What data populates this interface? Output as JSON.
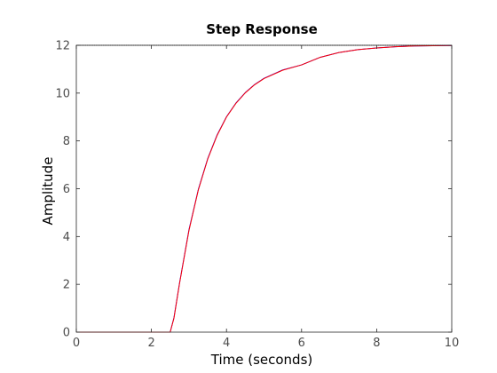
{
  "chart_data": {
    "type": "line",
    "title": "Step Response",
    "xlabel": "Time (seconds)",
    "ylabel": "Amplitude",
    "xlim": [
      0,
      10
    ],
    "ylim": [
      0,
      12
    ],
    "xticks": [
      0,
      2,
      4,
      6,
      8,
      10
    ],
    "yticks": [
      0,
      2,
      4,
      6,
      8,
      10,
      12
    ],
    "xtick_labels": [
      "0",
      "2",
      "4",
      "6",
      "8",
      "10"
    ],
    "ytick_labels": [
      "0",
      "2",
      "4",
      "6",
      "8",
      "10",
      "12"
    ],
    "grid": false,
    "box": true,
    "reference_line": {
      "y": 12,
      "style": "dotted",
      "color": "#000000"
    },
    "series": [
      {
        "color": "#0000ff",
        "x": [
          0,
          1,
          2,
          2.5,
          2.6,
          2.75,
          3.0,
          3.25,
          3.5,
          3.75,
          4.0,
          4.25,
          4.5,
          4.75,
          5.0,
          5.5,
          6.0,
          6.5,
          7.0,
          7.5,
          8.0,
          8.5,
          9.0,
          9.5,
          10.0
        ],
        "y": [
          0,
          0,
          0,
          0,
          0.6,
          2.06,
          4.28,
          5.97,
          7.26,
          8.25,
          9.01,
          9.58,
          10.02,
          10.36,
          10.62,
          10.97,
          11.18,
          11.5,
          11.7,
          11.82,
          11.89,
          11.94,
          11.97,
          11.98,
          11.99
        ]
      },
      {
        "color": "#ff0000",
        "x": [
          0,
          1,
          2,
          2.5,
          2.6,
          2.75,
          3.0,
          3.25,
          3.5,
          3.75,
          4.0,
          4.25,
          4.5,
          4.75,
          5.0,
          5.5,
          6.0,
          6.5,
          7.0,
          7.5,
          8.0,
          8.5,
          9.0,
          9.5,
          10.0
        ],
        "y": [
          0,
          0,
          0,
          0,
          0.58,
          2.04,
          4.25,
          5.95,
          7.24,
          8.23,
          9.0,
          9.57,
          10.01,
          10.35,
          10.61,
          10.96,
          11.18,
          11.5,
          11.7,
          11.82,
          11.89,
          11.94,
          11.97,
          11.98,
          11.99
        ]
      }
    ]
  }
}
